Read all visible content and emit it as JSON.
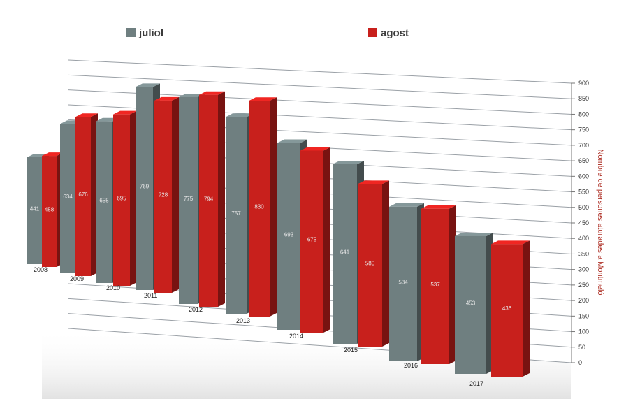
{
  "chart_data": {
    "type": "bar",
    "categories": [
      "2008",
      "2009",
      "2010",
      "2011",
      "2012",
      "2013",
      "2014",
      "2015",
      "2016",
      "2017"
    ],
    "series": [
      {
        "name": "juliol",
        "values": [
          441,
          634,
          655,
          769,
          775,
          757,
          693,
          641,
          534,
          453
        ],
        "color": "#6f7f80"
      },
      {
        "name": "agost",
        "values": [
          458,
          676,
          695,
          728,
          794,
          830,
          675,
          580,
          537,
          436
        ],
        "color": "#c8201c"
      }
    ],
    "value_labels": {
      "juliol": [
        "441",
        "634",
        "655",
        "769",
        "775",
        "757",
        "693",
        "641",
        "534",
        "453"
      ],
      "agost": [
        "458",
        "676",
        "695",
        "728",
        "794",
        "830",
        "675",
        "580",
        "537",
        "436"
      ]
    },
    "yticks": [
      "0",
      "50",
      "100",
      "150",
      "200",
      "250",
      "300",
      "350",
      "400",
      "450",
      "500",
      "550",
      "600",
      "650",
      "700",
      "750",
      "800",
      "850",
      "900"
    ],
    "ylim": [
      0,
      900
    ],
    "ylabel": "Nombre de persones aturades a Montmeló",
    "legend_position": "top",
    "grid": true
  }
}
